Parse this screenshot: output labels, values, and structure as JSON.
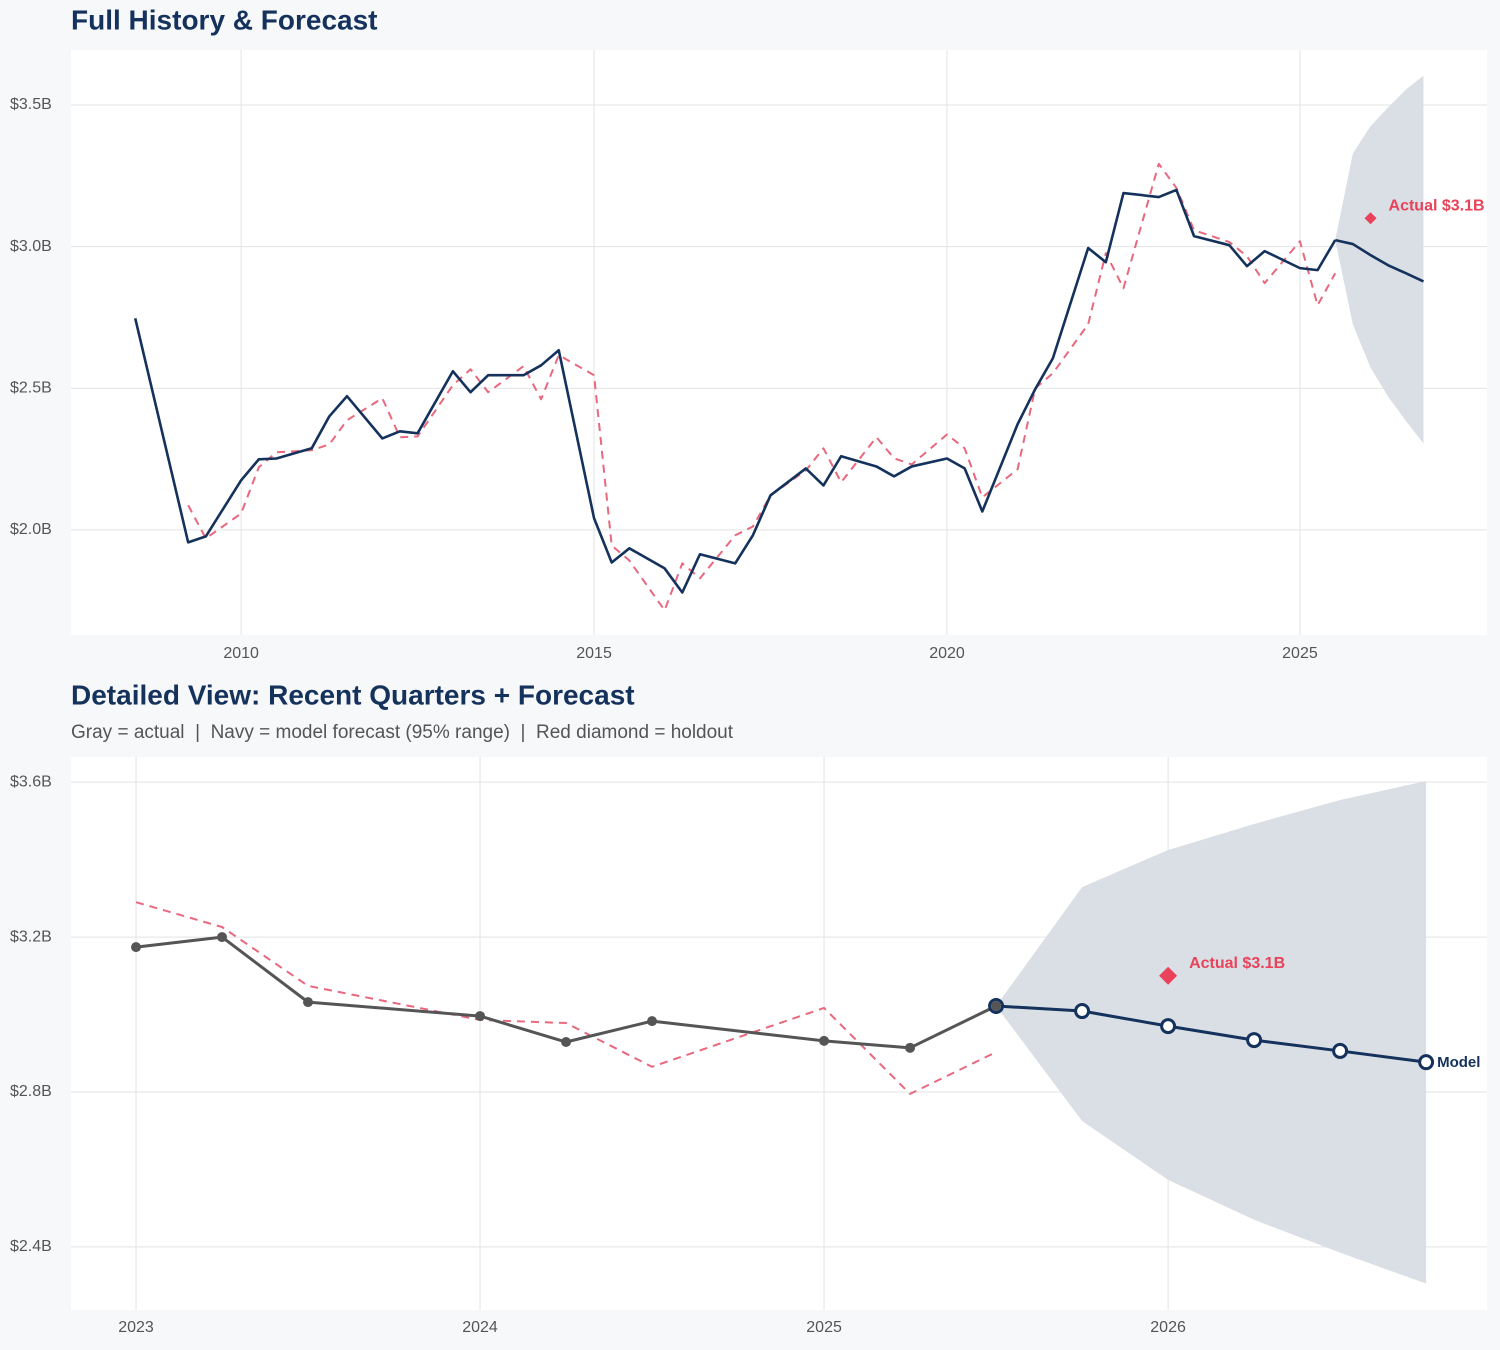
{
  "chart_data": [
    {
      "type": "line",
      "title": "Full History & Forecast",
      "xlim": [
        2007.59,
        2027.65
      ],
      "xticks": [
        2010,
        2015,
        2020,
        2025
      ],
      "ylim": [
        1.629,
        3.694
      ],
      "yticks": [
        {
          "value": 2.0,
          "label": "$2.0B"
        },
        {
          "value": 2.5,
          "label": "$2.5B"
        },
        {
          "value": 3.0,
          "label": "$3.0B"
        },
        {
          "value": 3.5,
          "label": "$3.5B"
        }
      ],
      "grid": true,
      "band": {
        "color": "#dadee5",
        "x": [
          2025.5,
          2025.75,
          2026,
          2026.25,
          2026.5,
          2026.75
        ],
        "upper": [
          3.023,
          3.329,
          3.425,
          3.492,
          3.554,
          3.603
        ],
        "lower": [
          3.023,
          2.725,
          2.573,
          2.47,
          2.385,
          2.305
        ]
      },
      "series": [
        {
          "color": "#e8687e",
          "style": "dashed",
          "x": [
            2009.25,
            2009.5,
            2010,
            2010.25,
            2010.5,
            2011,
            2011.25,
            2011.5,
            2012,
            2012.25,
            2012.5,
            2013,
            2013.25,
            2013.5,
            2014,
            2014.25,
            2014.5,
            2015,
            2015.25,
            2015.5,
            2016,
            2016.25,
            2016.5,
            2017,
            2017.25,
            2017.5,
            2018,
            2018.25,
            2018.5,
            2019,
            2019.25,
            2019.5,
            2020,
            2020.25,
            2020.5,
            2021,
            2021.25,
            2021.5,
            2022,
            2022.25,
            2022.5,
            2023,
            2023.25,
            2023.5,
            2024,
            2024.25,
            2024.5,
            2025,
            2025.25,
            2025.5
          ],
          "values": [
            2.087,
            1.97,
            2.058,
            2.221,
            2.274,
            2.281,
            2.302,
            2.387,
            2.465,
            2.327,
            2.33,
            2.511,
            2.567,
            2.486,
            2.578,
            2.461,
            2.617,
            2.546,
            1.945,
            1.892,
            1.716,
            1.882,
            1.829,
            1.981,
            2.012,
            2.122,
            2.21,
            2.288,
            2.168,
            2.327,
            2.253,
            2.231,
            2.337,
            2.288,
            2.115,
            2.214,
            2.5,
            2.553,
            2.726,
            2.977,
            2.853,
            3.292,
            3.207,
            3.058,
            3.016,
            2.966,
            2.871,
            3.019,
            2.793,
            2.906
          ]
        },
        {
          "color": "#14325c",
          "style": "solid",
          "x": [
            2008.5,
            2009.25,
            2009.5,
            2010,
            2010.25,
            2010.5,
            2011,
            2011.25,
            2011.5,
            2012,
            2012.25,
            2012.5,
            2013,
            2013.25,
            2013.5,
            2014,
            2014.25,
            2014.5,
            2015,
            2015.25,
            2015.5,
            2016,
            2016.25,
            2016.5,
            2017,
            2017.25,
            2017.5,
            2018,
            2018.25,
            2018.5,
            2019,
            2019.25,
            2019.5,
            2020,
            2020.25,
            2020.5,
            2021,
            2021.25,
            2021.5,
            2022,
            2022.25,
            2022.5,
            2023,
            2023.25,
            2023.5,
            2024,
            2024.25,
            2024.5,
            2025,
            2025.25,
            2025.5
          ],
          "values": [
            2.747,
            1.956,
            1.977,
            2.175,
            2.249,
            2.252,
            2.288,
            2.401,
            2.472,
            2.323,
            2.348,
            2.341,
            2.56,
            2.486,
            2.546,
            2.546,
            2.581,
            2.634,
            2.041,
            1.885,
            1.935,
            1.864,
            1.779,
            1.914,
            1.882,
            1.981,
            2.122,
            2.217,
            2.157,
            2.26,
            2.224,
            2.189,
            2.224,
            2.252,
            2.217,
            2.065,
            2.373,
            2.497,
            2.606,
            2.995,
            2.945,
            3.189,
            3.175,
            3.2,
            3.037,
            3.005,
            2.931,
            2.984,
            2.924,
            2.917,
            3.023
          ]
        },
        {
          "color": "#14325c",
          "style": "solid",
          "x": [
            2025.5,
            2025.75,
            2026,
            2026.25,
            2026.5,
            2026.75
          ],
          "values": [
            3.023,
            3.009,
            2.97,
            2.934,
            2.906,
            2.877
          ]
        }
      ],
      "holdout": {
        "color": "#e8435a",
        "x": 2026,
        "y": 3.1,
        "label": "Actual $3.1B"
      }
    },
    {
      "type": "line",
      "title": "Detailed View: Recent Quarters + Forecast",
      "subtitle": "Gray = actual  |  Navy = model forecast (95% range)  |  Red diamond = holdout",
      "xlim": [
        2022.811,
        2026.927
      ],
      "xticks": [
        2023,
        2024,
        2025,
        2026
      ],
      "ylim": [
        2.237,
        3.665
      ],
      "yticks": [
        {
          "value": 2.4,
          "label": "$2.4B"
        },
        {
          "value": 2.8,
          "label": "$2.8B"
        },
        {
          "value": 3.2,
          "label": "$3.2B"
        },
        {
          "value": 3.6,
          "label": "$3.6B"
        }
      ],
      "grid": true,
      "band": {
        "color": "#dadee5",
        "x": [
          2025.5,
          2025.75,
          2026,
          2026.25,
          2026.5,
          2026.75
        ],
        "upper": [
          3.022,
          3.329,
          3.425,
          3.492,
          3.554,
          3.603
        ],
        "lower": [
          3.022,
          2.725,
          2.573,
          2.47,
          2.385,
          2.305
        ]
      },
      "series": [
        {
          "color": "#e8687e",
          "style": "dashed",
          "x": [
            2023,
            2023.25,
            2023.5,
            2024,
            2024.25,
            2024.5,
            2025,
            2025.25,
            2025.5
          ],
          "values": [
            3.29,
            3.226,
            3.074,
            2.986,
            2.978,
            2.865,
            3.017,
            2.795,
            2.903
          ]
        },
        {
          "color": "#555555",
          "style": "solid",
          "markers": "filled",
          "x": [
            2023,
            2023.25,
            2023.5,
            2024,
            2024.25,
            2024.5,
            2025,
            2025.25,
            2025.5
          ],
          "values": [
            3.174,
            3.2,
            3.032,
            2.996,
            2.929,
            2.983,
            2.932,
            2.914,
            3.022
          ]
        },
        {
          "color": "#14325c",
          "style": "solid",
          "markers": "open",
          "label": "Model",
          "x": [
            2025.5,
            2025.75,
            2026,
            2026.25,
            2026.5,
            2026.75
          ],
          "values": [
            3.022,
            3.009,
            2.97,
            2.934,
            2.906,
            2.877
          ]
        }
      ],
      "holdout": {
        "color": "#e8435a",
        "x": 2026,
        "y": 3.1,
        "label": "Actual $3.1B"
      }
    }
  ]
}
